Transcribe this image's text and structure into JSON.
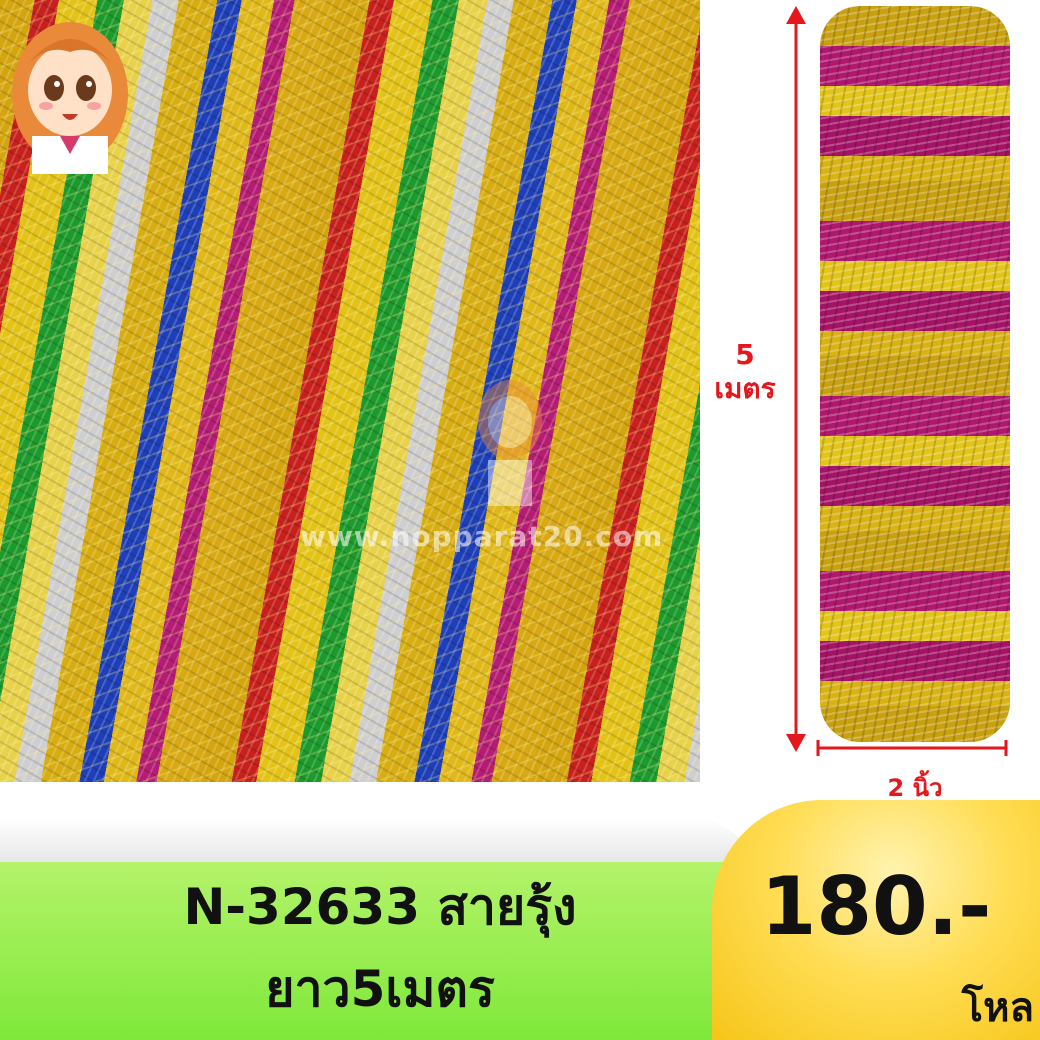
{
  "photo": {
    "watermark": "www.nopparat20.com",
    "mascot_icon": "anime-girl-mascot-icon"
  },
  "dimensions": {
    "length_value": "5",
    "length_unit": "เมตร",
    "width": "2 นิ้ว",
    "arrow_color": "#e3171c"
  },
  "product": {
    "title_line1": "N-32633 สายรุ้ง",
    "title_line2": "ยาว5เมตร"
  },
  "price": {
    "value": "180.-",
    "unit": "โหล"
  },
  "colors": {
    "banner_green": "#7fe83a",
    "badge_yellow": "#f6c518"
  }
}
